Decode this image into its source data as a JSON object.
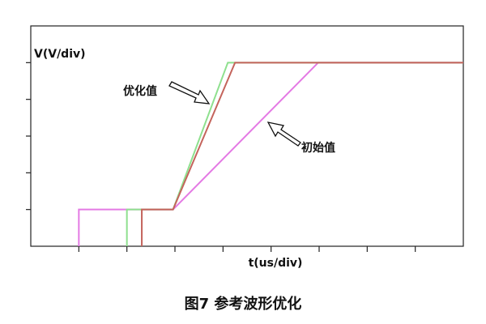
{
  "chart_data": {
    "type": "line",
    "y_label": "V(V/div)",
    "x_label": "t(us/div)",
    "caption": "图7  参考波形优化",
    "annotations": [
      "优化值",
      "初始值"
    ],
    "xlim": [
      0,
      9
    ],
    "ylim": [
      0,
      6
    ],
    "xticks": [
      1,
      2,
      3,
      4,
      5,
      6,
      7,
      8
    ],
    "yticks": [
      1,
      2,
      3,
      4,
      5
    ],
    "series": [
      {
        "color": "#e47ae4",
        "x": [
          1,
          1,
          2.96,
          5.98,
          9
        ],
        "values": [
          0,
          1,
          1,
          5,
          5
        ]
      },
      {
        "color": "#8ee08e",
        "x": [
          2,
          2,
          2.96,
          4.1,
          9
        ],
        "values": [
          0,
          1,
          1,
          5,
          5
        ]
      },
      {
        "color": "#c4645c",
        "x": [
          2.31,
          2.31,
          2.96,
          4.25,
          9
        ],
        "values": [
          0,
          1,
          1,
          5,
          5
        ]
      }
    ]
  }
}
